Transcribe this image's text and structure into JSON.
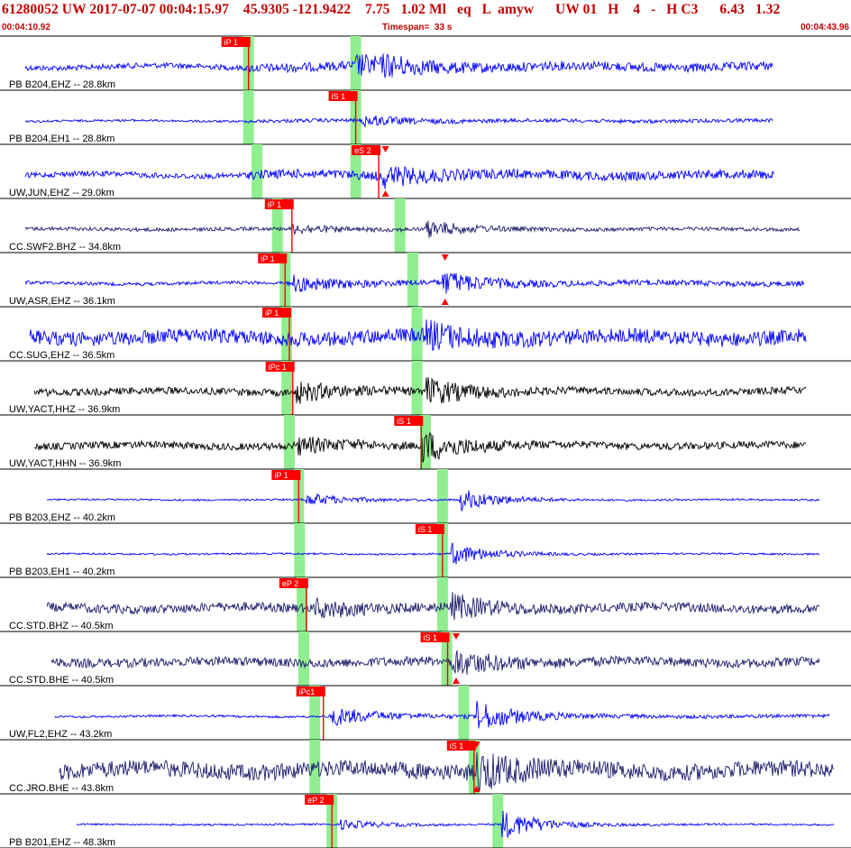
{
  "header": {
    "title": "61280052 UW 2017-07-07 00:04:15.97    45.9305 -121.9422    7.75   1.02 Ml   eq   L  amyw      UW 01   H    4   -   H C3      6.43   1.32",
    "start_time": "00:04:10.92",
    "timespan": "Timespan=  33 s",
    "end_time": "00:04:43.96"
  },
  "colors": {
    "title": "#c00000",
    "pick": "#ff0000",
    "window": "#90ee90",
    "trace_blue": "#0000ff",
    "trace_navy": "#1c1c6c",
    "trace_black": "#000000",
    "grid": "#000000"
  },
  "seismograms": [
    {
      "label": "PB B204,EHZ -- 28.8km",
      "color": "blue",
      "amp": 5,
      "noise_start": 0.03,
      "start": 0.292,
      "end": 0.908,
      "picks": [
        {
          "text": "iP 1",
          "t": 0.292
        }
      ],
      "win": [
        0.292,
        0.418
      ],
      "burst": [
        [
          0.418,
          10
        ],
        [
          0.45,
          6
        ]
      ],
      "tri": false
    },
    {
      "label": "PB B204,EH1 -- 28.8km",
      "color": "blue",
      "amp": 2,
      "noise_start": 0.03,
      "start": 0.292,
      "end": 0.908,
      "picks": [
        {
          "text": "iS 1",
          "t": 0.418
        }
      ],
      "win": [
        0.292,
        0.418
      ],
      "burst": [
        [
          0.425,
          6
        ]
      ],
      "tri": false
    },
    {
      "label": "UW,JUN,EHZ -- 29.0km",
      "color": "blue",
      "amp": 5,
      "noise_start": 0.03,
      "start": 0.292,
      "end": 0.91,
      "picks": [
        {
          "text": "eS 2",
          "t": 0.445
        }
      ],
      "win": [
        0.302,
        0.418
      ],
      "burst": [
        [
          0.45,
          10
        ]
      ],
      "tri": true,
      "tri_t": 0.453
    },
    {
      "label": "CC.SWF2.BHZ -- 34.8km",
      "color": "navy",
      "amp": 2,
      "noise_start": 0.03,
      "start": 0.03,
      "end": 0.94,
      "picks": [
        {
          "text": "iP 1",
          "t": 0.343
        }
      ],
      "win": [
        0.326,
        0.47
      ],
      "burst": [
        [
          0.343,
          5
        ],
        [
          0.5,
          9
        ]
      ],
      "tri": false
    },
    {
      "label": "UW,ASR,EHZ -- 36.1km",
      "color": "blue",
      "amp": 3,
      "noise_start": 0.03,
      "start": 0.335,
      "end": 0.945,
      "picks": [
        {
          "text": "iP 1",
          "t": 0.335
        }
      ],
      "win": [
        0.335,
        0.485
      ],
      "burst": [
        [
          0.345,
          8
        ],
        [
          0.52,
          12
        ]
      ],
      "tri": true,
      "tri_t": 0.523
    },
    {
      "label": "CC.SUG,EHZ -- 36.5km",
      "color": "blue",
      "amp": 8,
      "noise_start": 0.035,
      "start": 0.035,
      "end": 0.947,
      "picks": [
        {
          "text": "iP 1",
          "t": 0.34
        }
      ],
      "win": [
        0.337,
        0.49
      ],
      "burst": [
        [
          0.5,
          12
        ]
      ],
      "tri": false
    },
    {
      "label": "UW,YACT,HHZ -- 36.9km",
      "color": "black",
      "amp": 4,
      "noise_start": 0.04,
      "start": 0.04,
      "end": 0.947,
      "picks": [
        {
          "text": "iPc 1",
          "t": 0.344
        }
      ],
      "win": [
        0.337,
        0.49
      ],
      "burst": [
        [
          0.348,
          10
        ],
        [
          0.5,
          14
        ]
      ],
      "tri": false
    },
    {
      "label": "UW,YACT,HHN -- 36.9km",
      "color": "black",
      "amp": 4,
      "noise_start": 0.04,
      "start": 0.04,
      "end": 0.947,
      "picks": [
        {
          "text": "iS 1",
          "t": 0.495
        }
      ],
      "win": [
        0.34,
        0.5
      ],
      "burst": [
        [
          0.35,
          8
        ],
        [
          0.495,
          16
        ]
      ],
      "tri": false
    },
    {
      "label": "PB B203,EHZ -- 40.2km",
      "color": "blue",
      "amp": 1,
      "noise_start": 0.055,
      "start": 0.055,
      "end": 0.963,
      "picks": [
        {
          "text": "iP 1",
          "t": 0.351
        }
      ],
      "win": [
        0.351,
        0.52
      ],
      "burst": [
        [
          0.36,
          7
        ],
        [
          0.54,
          12
        ]
      ],
      "tri": false
    },
    {
      "label": "PB B203,EH1 -- 40.2km",
      "color": "blue",
      "amp": 1,
      "noise_start": 0.055,
      "start": 0.055,
      "end": 0.963,
      "picks": [
        {
          "text": "iS 1",
          "t": 0.52
        }
      ],
      "win": [
        0.352,
        0.52
      ],
      "burst": [
        [
          0.53,
          12
        ]
      ],
      "tri": false
    },
    {
      "label": "CC.STD.BHZ -- 40.5km",
      "color": "navy",
      "amp": 5,
      "noise_start": 0.055,
      "start": 0.055,
      "end": 0.963,
      "picks": [
        {
          "text": "eP 2",
          "t": 0.36
        }
      ],
      "win": [
        0.355,
        0.52
      ],
      "burst": [
        [
          0.37,
          8
        ],
        [
          0.53,
          12
        ]
      ],
      "tri": false
    },
    {
      "label": "CC.STD.BHE -- 40.5km",
      "color": "navy",
      "amp": 5,
      "noise_start": 0.06,
      "start": 0.06,
      "end": 0.963,
      "picks": [
        {
          "text": "iS 1",
          "t": 0.526
        }
      ],
      "win": [
        0.357,
        0.525
      ],
      "burst": [
        [
          0.53,
          14
        ]
      ],
      "tri": true,
      "tri_t": 0.536
    },
    {
      "label": "UW,FL2,EHZ -- 43.2km",
      "color": "blue",
      "amp": 2,
      "noise_start": 0.065,
      "start": 0.38,
      "end": 0.975,
      "picks": [
        {
          "text": "iPc1",
          "t": 0.38
        }
      ],
      "win": [
        0.37,
        0.545
      ],
      "burst": [
        [
          0.39,
          10
        ],
        [
          0.56,
          16
        ]
      ],
      "tri": false
    },
    {
      "label": "CC.JRO.BHE -- 43.8km",
      "color": "navy",
      "amp": 9,
      "noise_start": 0.07,
      "start": 0.07,
      "end": 0.98,
      "picks": [
        {
          "text": "iS 1",
          "t": 0.557
        }
      ],
      "win": [
        0.37,
        0.557
      ],
      "burst": [
        [
          0.56,
          18
        ]
      ],
      "tri": true,
      "tri_t": 0.56
    },
    {
      "label": "PB B201,EHZ -- 48.3km",
      "color": "blue",
      "amp": 1,
      "noise_start": 0.09,
      "start": 0.09,
      "end": 0.98,
      "picks": [
        {
          "text": "eP 2",
          "t": 0.39
        }
      ],
      "win": [
        0.39,
        0.585
      ],
      "burst": [
        [
          0.4,
          5
        ],
        [
          0.59,
          16
        ]
      ],
      "tri": false
    }
  ]
}
